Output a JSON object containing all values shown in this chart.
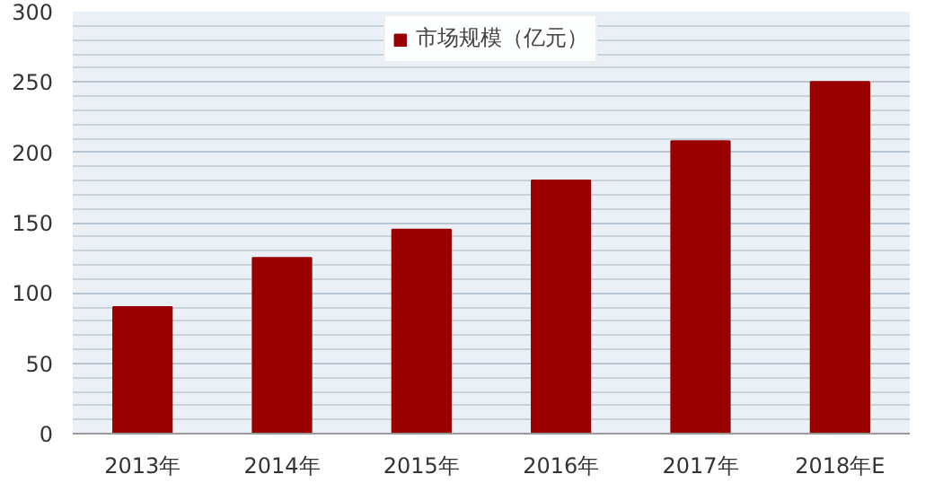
{
  "chart_data": {
    "type": "bar",
    "categories": [
      "2013年",
      "2014年",
      "2015年",
      "2016年",
      "2017年",
      "2018年E"
    ],
    "series": [
      {
        "name": "市场规模（亿元）",
        "color": "#990000",
        "values": [
          90,
          125,
          145,
          180,
          208,
          250
        ]
      }
    ],
    "ylim": [
      0,
      300
    ],
    "yticks": [
      0,
      50,
      100,
      150,
      200,
      250,
      300
    ],
    "grid": "y",
    "legend": "top"
  }
}
